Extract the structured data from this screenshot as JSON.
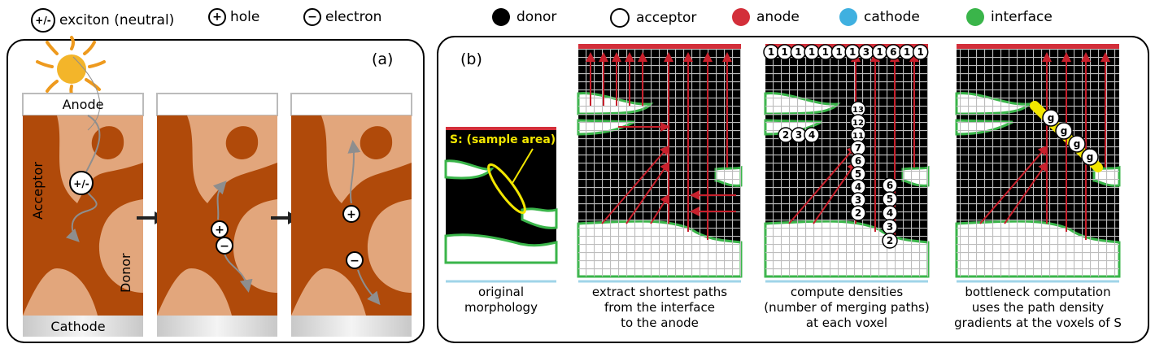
{
  "legend": {
    "exciton_symbol": "+/-",
    "exciton": "exciton (neutral)",
    "hole_symbol": "+",
    "hole": "hole",
    "electron_symbol": "−",
    "electron": "electron",
    "donor": "donor",
    "acceptor": "acceptor",
    "anode": "anode",
    "cathode": "cathode",
    "interface": "interface"
  },
  "colors": {
    "donor": "#000000",
    "acceptor": "#ffffff",
    "anode": "#d32f3a",
    "cathode": "#3fb0e0",
    "interface": "#3ab54a",
    "donor_phase": "#b04a0a",
    "acceptor_phase": "#e2a67c",
    "bottleneck": "#f2e600"
  },
  "panel_a": {
    "label": "(a)",
    "anode": "Anode",
    "cathode": "Cathode",
    "acceptor": "Acceptor",
    "donor": "Donor",
    "exciton": "+/-",
    "hole": "+",
    "electron": "−"
  },
  "panel_b": {
    "label": "(b)",
    "sample_area": "S: (sample area)",
    "captions": [
      [
        "original",
        "morphology"
      ],
      [
        "extract shortest paths",
        "from  the interface",
        "to the anode"
      ],
      [
        "compute densities",
        "(number of merging paths)",
        "at each voxel"
      ],
      [
        "bottleneck computation",
        "uses the path density",
        "gradients at the voxels of S"
      ]
    ],
    "top_densities": [
      "1",
      "1",
      "1",
      "1",
      "1",
      "1",
      "1",
      "3",
      "1",
      "6",
      "1",
      "1"
    ],
    "column_densities": [
      "13",
      "12",
      "11",
      "7",
      "6",
      "5",
      "4",
      "3",
      "2"
    ],
    "left_densities": [
      "2",
      "3",
      "4"
    ],
    "right_densities": [
      "6",
      "5",
      "4",
      "3",
      "2"
    ],
    "gradient_label": "g"
  }
}
